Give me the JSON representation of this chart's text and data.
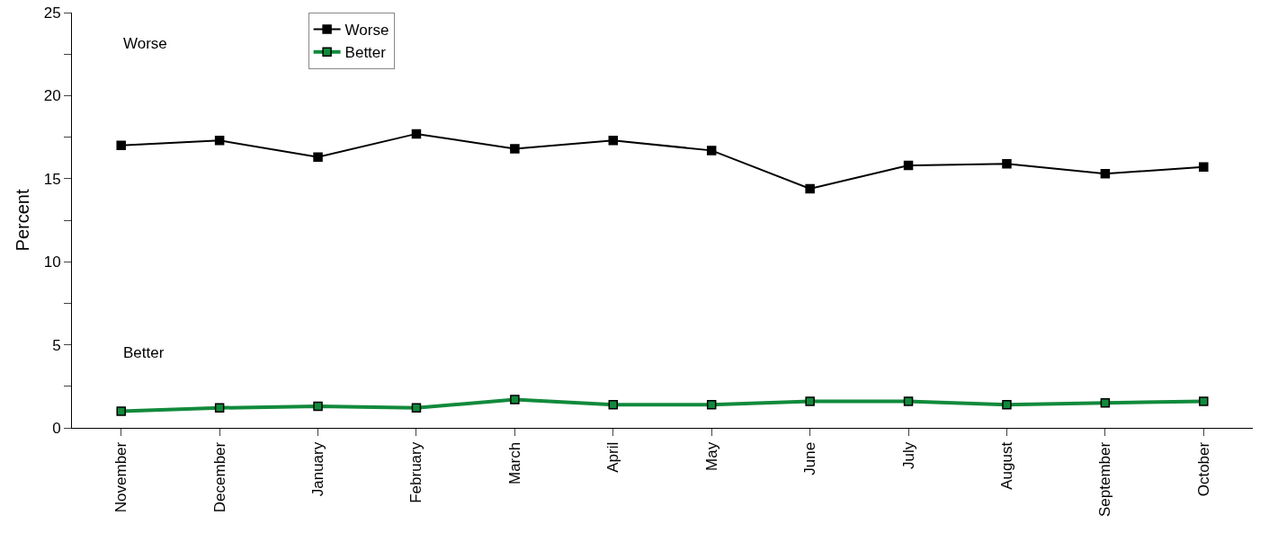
{
  "chart_data": {
    "type": "line",
    "ylabel": "Percent",
    "categories": [
      "November",
      "December",
      "January",
      "February",
      "March",
      "April",
      "May",
      "June",
      "July",
      "August",
      "September",
      "October"
    ],
    "series": [
      {
        "name": "Worse",
        "color": "#000000",
        "values": [
          17.0,
          17.3,
          16.3,
          17.7,
          16.8,
          17.3,
          16.7,
          14.4,
          15.8,
          15.9,
          15.3,
          15.7
        ]
      },
      {
        "name": "Better",
        "color": "#118a3c",
        "values": [
          1.0,
          1.2,
          1.3,
          1.2,
          1.7,
          1.4,
          1.4,
          1.6,
          1.6,
          1.4,
          1.5,
          1.6
        ]
      }
    ],
    "ylim": [
      0,
      25
    ],
    "yticks": [
      0,
      {
        "value": 2.5,
        "label": null
      },
      5,
      {
        "value": 7.5,
        "label": null
      },
      10,
      {
        "value": 12.5,
        "label": null
      },
      15,
      {
        "value": 17.5,
        "label": null
      },
      20,
      {
        "value": 22.5,
        "label": null
      },
      25
    ],
    "annotations": [
      "Worse",
      "Better"
    ],
    "grid": false,
    "legend": "top left",
    "marker": "square",
    "line_style": "solid"
  }
}
